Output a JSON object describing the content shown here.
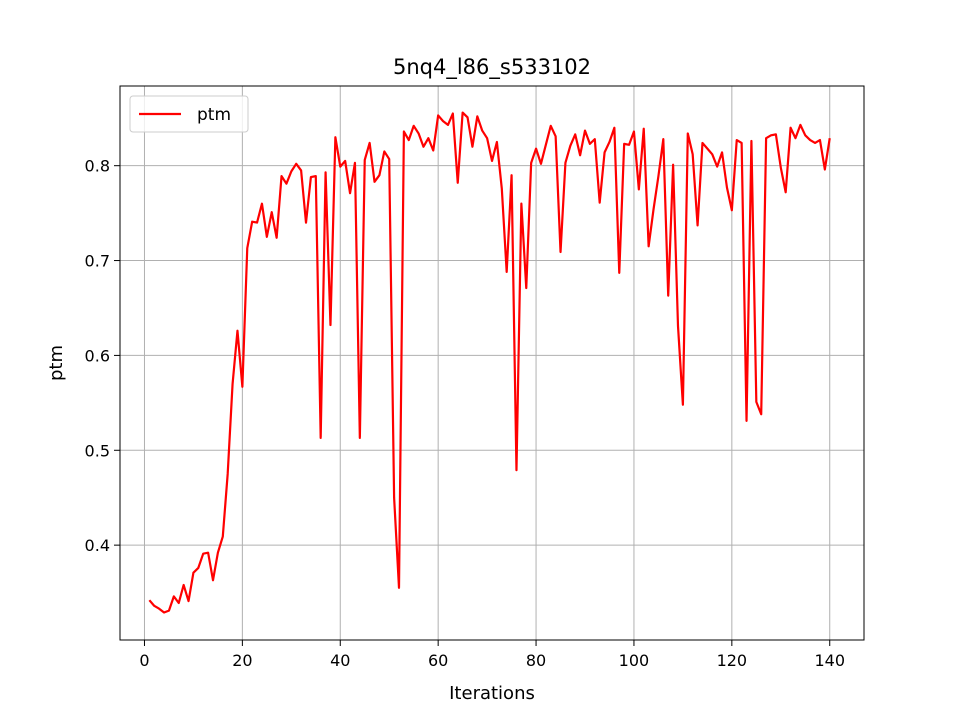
{
  "chart_data": {
    "type": "line",
    "title": "5nq4_l86_s533102",
    "xlabel": "Iterations",
    "ylabel": "ptm",
    "xlim": [
      -5,
      147
    ],
    "ylim": [
      0.3,
      0.884
    ],
    "xticks": [
      0,
      20,
      40,
      60,
      80,
      100,
      120,
      140
    ],
    "yticks": [
      0.4,
      0.5,
      0.6,
      0.7,
      0.8
    ],
    "grid": true,
    "legend": "top-left",
    "series": [
      {
        "name": "ptm",
        "color": "#ff0000",
        "x": [
          1,
          2,
          3,
          4,
          5,
          6,
          7,
          8,
          9,
          10,
          11,
          12,
          13,
          14,
          15,
          16,
          17,
          18,
          19,
          20,
          21,
          22,
          23,
          24,
          25,
          26,
          27,
          28,
          29,
          30,
          31,
          32,
          33,
          34,
          35,
          36,
          37,
          38,
          39,
          40,
          41,
          42,
          43,
          44,
          45,
          46,
          47,
          48,
          49,
          50,
          51,
          52,
          53,
          54,
          55,
          56,
          57,
          58,
          59,
          60,
          61,
          62,
          63,
          64,
          65,
          66,
          67,
          68,
          69,
          70,
          71,
          72,
          73,
          74,
          75,
          76,
          77,
          78,
          79,
          80,
          81,
          82,
          83,
          84,
          85,
          86,
          87,
          88,
          89,
          90,
          91,
          92,
          93,
          94,
          95,
          96,
          97,
          98,
          99,
          100,
          101,
          102,
          103,
          104,
          105,
          106,
          107,
          108,
          109,
          110,
          111,
          112,
          113,
          114,
          115,
          116,
          117,
          118,
          119,
          120,
          121,
          122,
          123,
          124,
          125,
          126,
          127,
          128,
          129,
          130,
          131,
          132,
          133,
          134,
          135,
          136,
          137,
          138,
          139,
          140
        ],
        "y": [
          0.342,
          0.336,
          0.333,
          0.329,
          0.331,
          0.346,
          0.339,
          0.358,
          0.341,
          0.371,
          0.376,
          0.391,
          0.392,
          0.363,
          0.392,
          0.409,
          0.475,
          0.57,
          0.626,
          0.567,
          0.713,
          0.741,
          0.74,
          0.76,
          0.725,
          0.751,
          0.724,
          0.789,
          0.781,
          0.794,
          0.802,
          0.795,
          0.74,
          0.788,
          0.789,
          0.513,
          0.793,
          0.632,
          0.83,
          0.799,
          0.805,
          0.771,
          0.803,
          0.513,
          0.806,
          0.824,
          0.783,
          0.79,
          0.815,
          0.807,
          0.45,
          0.355,
          0.836,
          0.827,
          0.842,
          0.834,
          0.82,
          0.829,
          0.816,
          0.853,
          0.847,
          0.843,
          0.855,
          0.782,
          0.856,
          0.851,
          0.82,
          0.852,
          0.837,
          0.829,
          0.805,
          0.825,
          0.776,
          0.688,
          0.79,
          0.479,
          0.76,
          0.671,
          0.803,
          0.818,
          0.802,
          0.822,
          0.842,
          0.831,
          0.709,
          0.803,
          0.821,
          0.833,
          0.811,
          0.837,
          0.823,
          0.828,
          0.761,
          0.814,
          0.825,
          0.84,
          0.687,
          0.823,
          0.822,
          0.836,
          0.775,
          0.839,
          0.715,
          0.754,
          0.789,
          0.828,
          0.663,
          0.801,
          0.631,
          0.548,
          0.834,
          0.812,
          0.737,
          0.824,
          0.818,
          0.812,
          0.799,
          0.814,
          0.777,
          0.753,
          0.827,
          0.824,
          0.531,
          0.826,
          0.551,
          0.538,
          0.829,
          0.832,
          0.833,
          0.798,
          0.772,
          0.84,
          0.829,
          0.843,
          0.832,
          0.827,
          0.824,
          0.827,
          0.796,
          0.829
        ]
      }
    ]
  }
}
